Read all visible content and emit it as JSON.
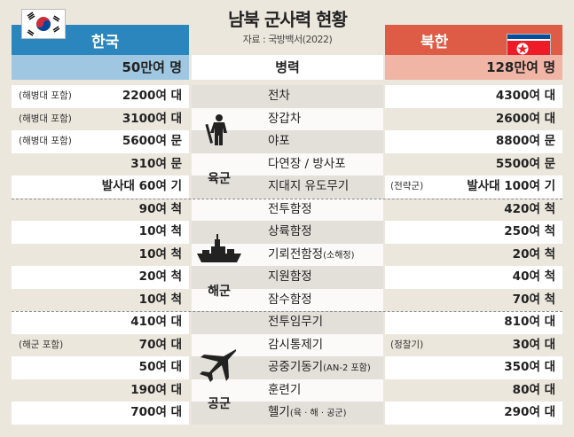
{
  "title": "남북 군사력 현황",
  "source": "자료 : 국방백서(2022)",
  "south": {
    "label": "한국",
    "troops": "50만여 명",
    "color": "#2b86bd"
  },
  "north": {
    "label": "북한",
    "troops": "128만여 명",
    "color": "#de5c45"
  },
  "troops_label": "병력",
  "branches": {
    "army": "육군",
    "navy": "해군",
    "air": "공군"
  },
  "rows": [
    {
      "item": "전차",
      "item_note": "",
      "south": "2200여 대",
      "south_note": "(해병대 포함)",
      "north": "4300여 대",
      "north_note": ""
    },
    {
      "item": "장갑차",
      "item_note": "",
      "south": "3100여 대",
      "south_note": "(해병대 포함)",
      "north": "2600여 대",
      "north_note": ""
    },
    {
      "item": "야포",
      "item_note": "",
      "south": "5600여 문",
      "south_note": "(해병대 포함)",
      "north": "8800여 문",
      "north_note": ""
    },
    {
      "item": "다연장 / 방사포",
      "item_note": "",
      "south": "310여 문",
      "south_note": "",
      "north": "5500여 문",
      "north_note": ""
    },
    {
      "item": "지대지 유도무기",
      "item_note": "",
      "south": "발사대 60여 기",
      "south_note": "",
      "north": "발사대 100여 기",
      "north_note": "(전략군)"
    },
    {
      "item": "전투함정",
      "item_note": "",
      "south": "90여 척",
      "south_note": "",
      "north": "420여 척",
      "north_note": ""
    },
    {
      "item": "상륙함정",
      "item_note": "",
      "south": "10여 척",
      "south_note": "",
      "north": "250여 척",
      "north_note": ""
    },
    {
      "item": "기뢰전함정",
      "item_note": "(소해정)",
      "south": "10여 척",
      "south_note": "",
      "north": "20여 척",
      "north_note": ""
    },
    {
      "item": "지원함정",
      "item_note": "",
      "south": "20여 척",
      "south_note": "",
      "north": "40여 척",
      "north_note": ""
    },
    {
      "item": "잠수함정",
      "item_note": "",
      "south": "10여 척",
      "south_note": "",
      "north": "70여 척",
      "north_note": ""
    },
    {
      "item": "전투임무기",
      "item_note": "",
      "south": "410여 대",
      "south_note": "",
      "north": "810여 대",
      "north_note": ""
    },
    {
      "item": "감시통제기",
      "item_note": "",
      "south": "70여 대",
      "south_note": "(해군 포함)",
      "north": "30여 대",
      "north_note": "(정찰기)"
    },
    {
      "item": "공중기동기",
      "item_note": "(AN-2 포함)",
      "south": "50여 대",
      "south_note": "",
      "north": "350여 대",
      "north_note": ""
    },
    {
      "item": "훈련기",
      "item_note": "",
      "south": "190여 대",
      "south_note": "",
      "north": "80여 대",
      "north_note": ""
    },
    {
      "item": "헬기",
      "item_note": "(육 · 해 · 공군)",
      "south": "700여 대",
      "south_note": "",
      "north": "290여 대",
      "north_note": ""
    }
  ]
}
